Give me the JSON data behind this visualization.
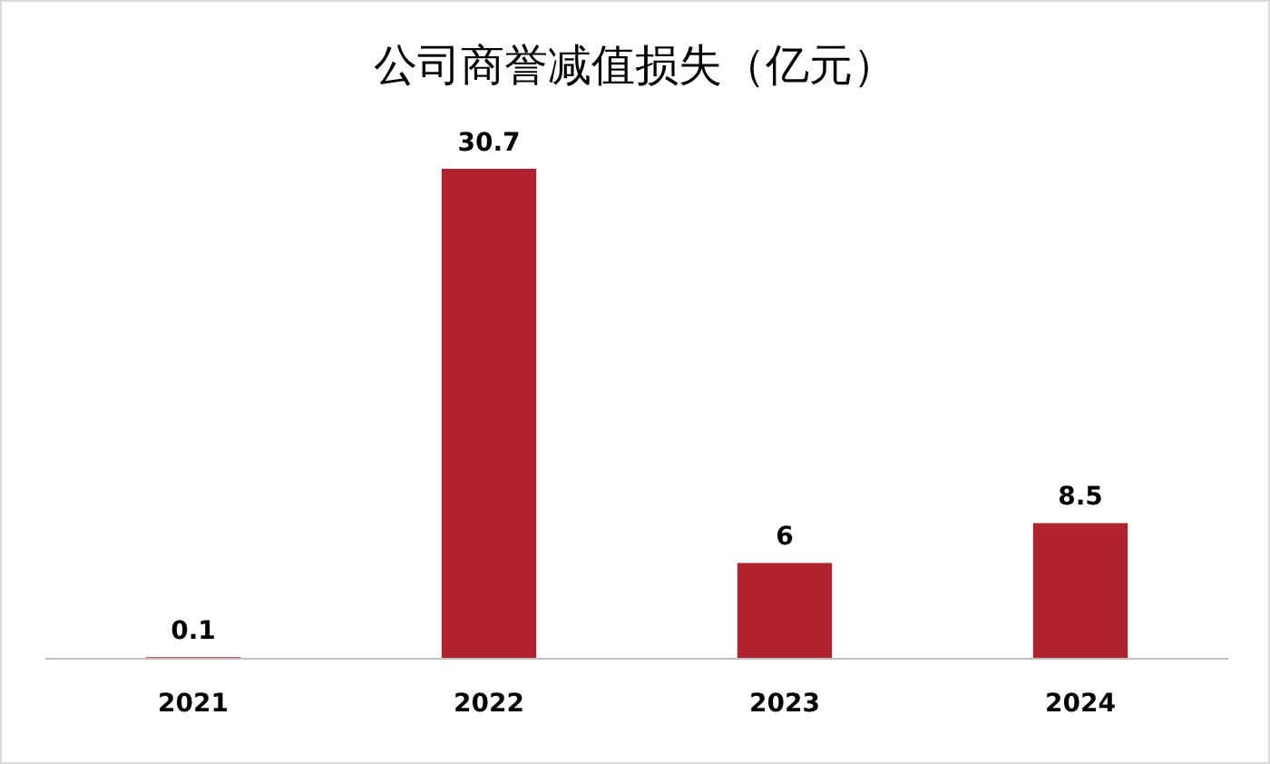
{
  "chart_data": {
    "type": "bar",
    "title": "公司商誉减值损失（亿元）",
    "categories": [
      "2021",
      "2022",
      "2023",
      "2024"
    ],
    "values": [
      0.1,
      30.7,
      6,
      8.5
    ],
    "color": "#b0232e",
    "data_labels": true
  }
}
